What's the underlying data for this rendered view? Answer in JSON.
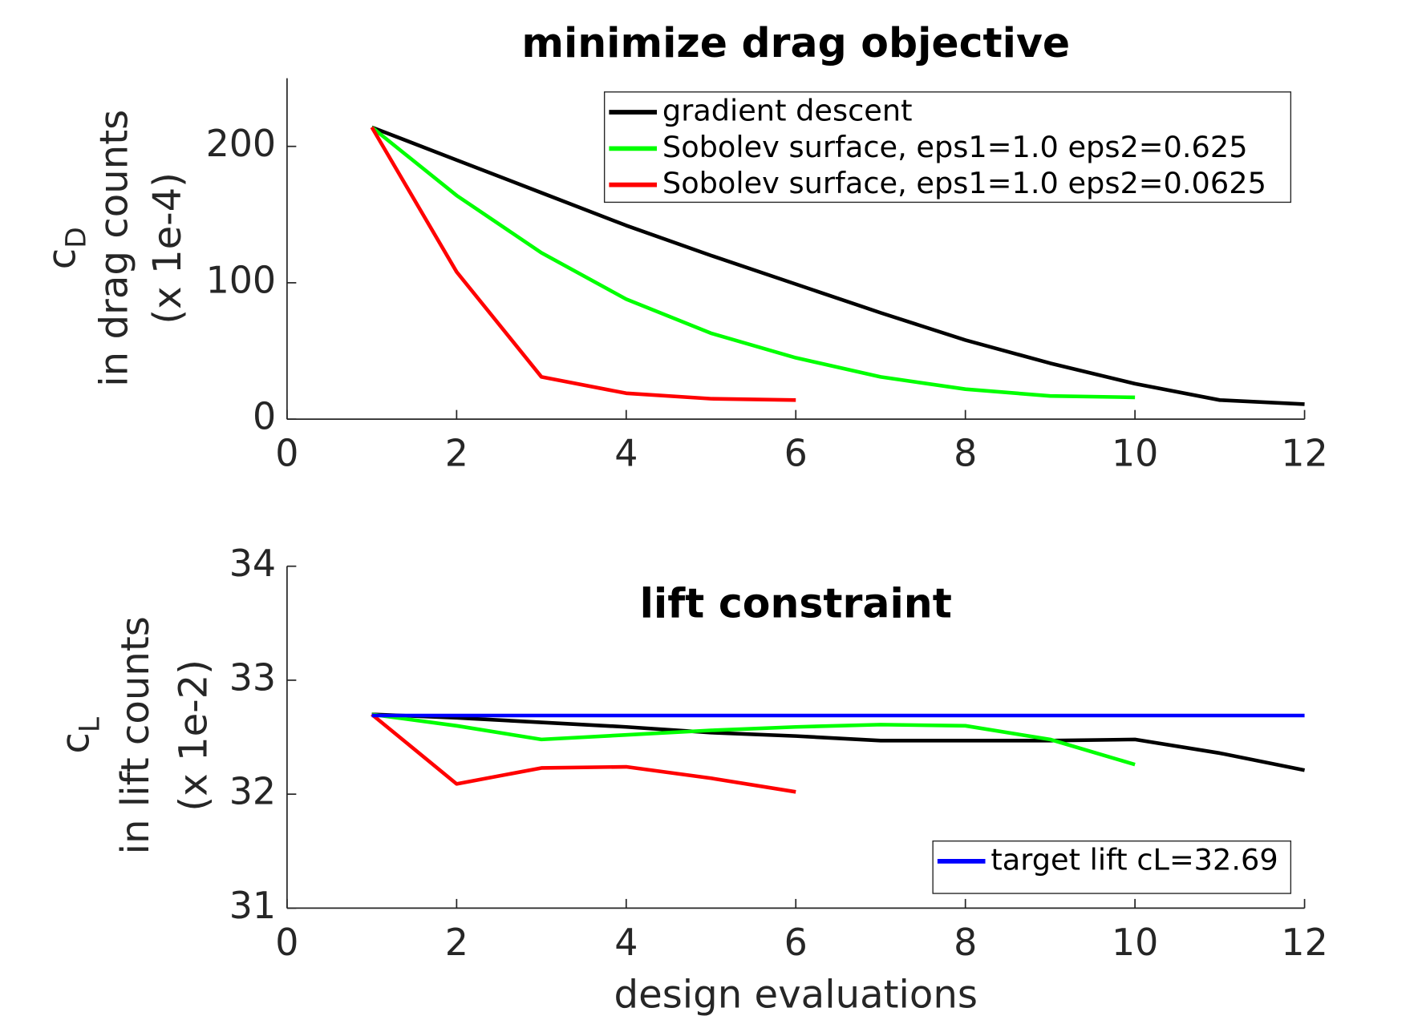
{
  "chart_data": [
    {
      "type": "line",
      "title": "minimize drag objective",
      "ylabel": {
        "symbol": "c",
        "subscript": "D",
        "lines": [
          "in drag counts",
          "(x 1e-4)"
        ]
      },
      "xlim": [
        0,
        12
      ],
      "xticks": [
        0,
        2,
        4,
        6,
        8,
        10,
        12
      ],
      "ylim": [
        0,
        250
      ],
      "yticks": [
        0,
        100,
        200
      ],
      "legend": "upper right",
      "series": [
        {
          "name": "gradient descent",
          "color": "#000000",
          "x": [
            1,
            2,
            3,
            4,
            5,
            6,
            7,
            8,
            9,
            10,
            11,
            12
          ],
          "values": [
            214,
            190,
            166,
            142,
            120,
            99,
            78,
            58,
            41,
            26,
            14,
            11
          ]
        },
        {
          "name": "Sobolev surface, eps1=1.0 eps2=0.625",
          "color": "#00ff00",
          "x": [
            1,
            2,
            3,
            4,
            5,
            6,
            7,
            8,
            9,
            10
          ],
          "values": [
            214,
            164,
            122,
            88,
            63,
            45,
            31,
            22,
            17,
            16
          ]
        },
        {
          "name": "Sobolev surface, eps1=1.0 eps2=0.0625",
          "color": "#ff0000",
          "x": [
            1,
            2,
            3,
            4,
            5,
            6
          ],
          "values": [
            214,
            108,
            31,
            19,
            15,
            14
          ]
        }
      ]
    },
    {
      "type": "line",
      "title": "lift constraint",
      "ylabel": {
        "symbol": "c",
        "subscript": "L",
        "lines": [
          "in lift counts",
          "(x 1e-2)"
        ]
      },
      "xlabel": "design evaluations",
      "xlim": [
        0,
        12
      ],
      "xticks": [
        0,
        2,
        4,
        6,
        8,
        10,
        12
      ],
      "ylim": [
        31,
        34
      ],
      "yticks": [
        31,
        32,
        33,
        34
      ],
      "legend": "lower right",
      "series": [
        {
          "name": null,
          "color": "#000000",
          "x": [
            1,
            2,
            3,
            4,
            5,
            6,
            7,
            8,
            9,
            10,
            11,
            12
          ],
          "values": [
            32.7,
            32.67,
            32.63,
            32.59,
            32.54,
            32.51,
            32.47,
            32.47,
            32.47,
            32.48,
            32.36,
            32.21
          ]
        },
        {
          "name": null,
          "color": "#00ff00",
          "x": [
            1,
            2,
            3,
            4,
            5,
            6,
            7,
            8,
            9,
            10
          ],
          "values": [
            32.7,
            32.6,
            32.48,
            32.52,
            32.56,
            32.59,
            32.61,
            32.6,
            32.48,
            32.26
          ]
        },
        {
          "name": null,
          "color": "#ff0000",
          "x": [
            1,
            2,
            3,
            4,
            5,
            6
          ],
          "values": [
            32.7,
            32.09,
            32.23,
            32.24,
            32.14,
            32.02
          ]
        },
        {
          "name": "target lift cL=32.69",
          "color": "#0000ff",
          "x": [
            1,
            12
          ],
          "values": [
            32.69,
            32.69
          ]
        }
      ]
    }
  ]
}
